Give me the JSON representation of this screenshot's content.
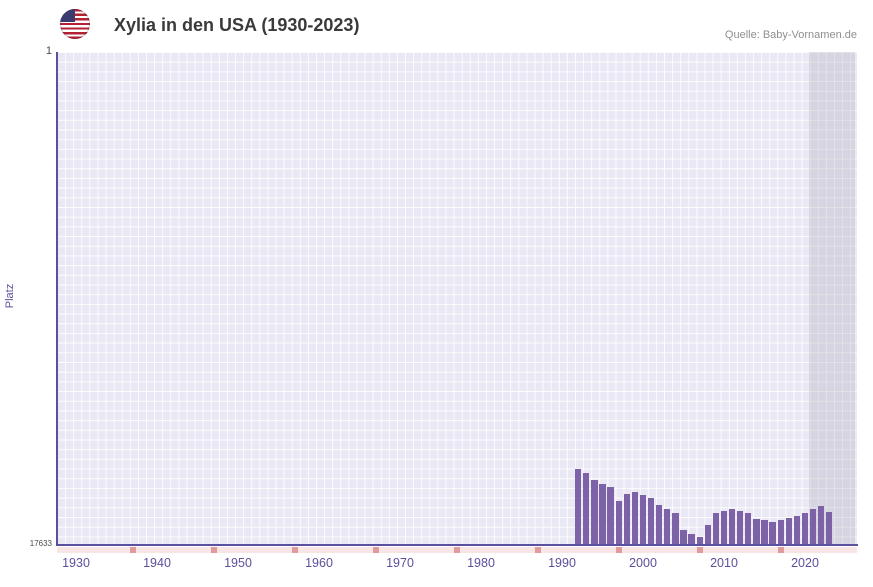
{
  "header": {
    "title": "Xylia in den USA (1930-2023)",
    "source": "Quelle: Baby-Vornamen.de"
  },
  "icons": {
    "flag": "us-flag-icon"
  },
  "chart_data": {
    "type": "bar",
    "title": "Xylia in den USA (1930-2023)",
    "ylabel": "Platz",
    "y_axis": {
      "top_label": "1",
      "bottom_label": "17633",
      "min": 1,
      "max": 17633,
      "inverted": true
    },
    "x_tick_labels": [
      "1930",
      "1940",
      "1950",
      "1960",
      "1970",
      "1980",
      "1990",
      "2000",
      "2010",
      "2020"
    ],
    "x_range": [
      1930,
      2023
    ],
    "grid": true,
    "legend": false,
    "bar_color": "#7d62a8",
    "years": [
      1992,
      1993,
      1994,
      1995,
      1996,
      1997,
      1998,
      1999,
      2000,
      2001,
      2002,
      2003,
      2004,
      2005,
      2006,
      2007,
      2008,
      2009,
      2010,
      2011,
      2012,
      2013,
      2014,
      2015,
      2016,
      2017,
      2018,
      2019,
      2020,
      2021,
      2022,
      2023
    ],
    "ranks": [
      14900,
      15050,
      15300,
      15450,
      15550,
      16050,
      15800,
      15750,
      15850,
      15950,
      16200,
      16350,
      16500,
      17100,
      17250,
      17350,
      16900,
      16500,
      16400,
      16350,
      16400,
      16500,
      16700,
      16750,
      16800,
      16750,
      16650,
      16600,
      16500,
      16350,
      16250,
      16450
    ],
    "no_data_tick_years": [
      1937,
      1947,
      1957,
      1967,
      1977,
      1987,
      1997,
      2007,
      2017
    ],
    "recent_band": {
      "from_year": 2021,
      "to_year": 2023
    }
  }
}
